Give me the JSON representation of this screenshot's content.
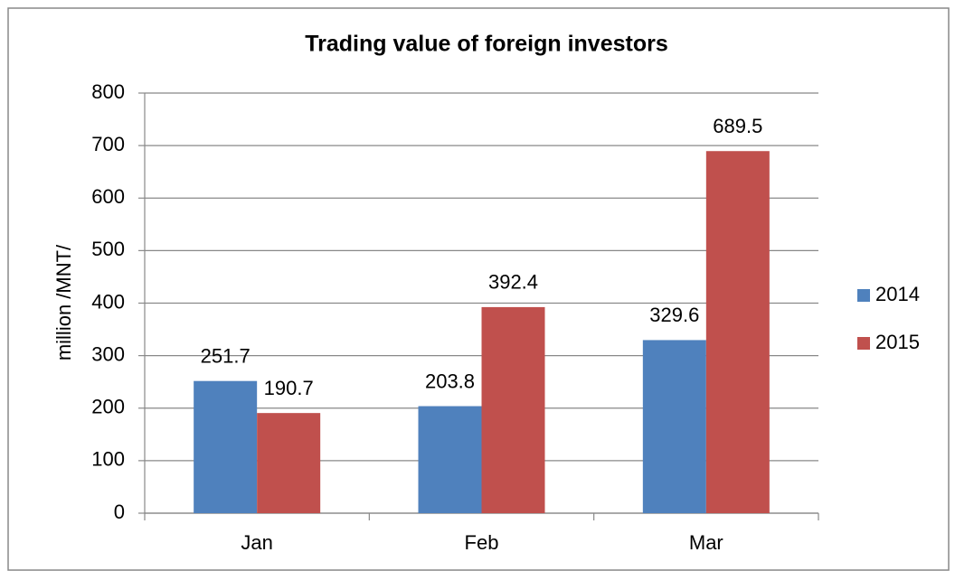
{
  "chart_data": {
    "type": "bar",
    "title": "Trading value of foreign investors",
    "y_label": "million /MNT/",
    "categories": [
      "Jan",
      "Feb",
      "Mar"
    ],
    "series": [
      {
        "name": "2014",
        "color": "#4f81bd",
        "values": [
          251.7,
          203.8,
          329.6
        ]
      },
      {
        "name": "2015",
        "color": "#c0504d",
        "values": [
          190.7,
          392.4,
          689.5
        ]
      }
    ],
    "ylim": [
      0,
      800
    ],
    "yticks": [
      0,
      100,
      200,
      300,
      400,
      500,
      600,
      700,
      800
    ],
    "grid": true,
    "legend": "right"
  }
}
